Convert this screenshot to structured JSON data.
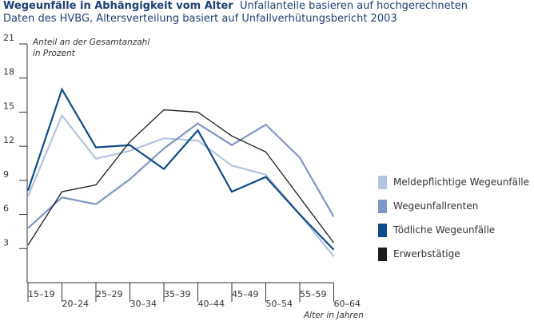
{
  "header": {
    "title_bold": "Wegeunfälle in Abhängigkeit vom Alter",
    "title_rest": "Unfallanteile basieren auf hochgerechneten",
    "subtitle_line2": "Daten des HVBG, Altersverteilung basiert auf Unfallverhütungsbericht 2003"
  },
  "chart_data": {
    "type": "line",
    "title": "Wegeunfälle in Abhängigkeit vom Alter",
    "ylabel": "Anteil an der Gesamtanzahl\nin Prozent",
    "xlabel": "Alter in Jahren",
    "ylim": [
      0,
      21
    ],
    "yticks": [
      3,
      6,
      9,
      12,
      15,
      18,
      21
    ],
    "grid": false,
    "legend_position": "right",
    "categories": [
      "15–19",
      "20–24",
      "25–29",
      "30–34",
      "35–39",
      "40–44",
      "45–49",
      "50–54",
      "55–59",
      "60–64"
    ],
    "series": [
      {
        "name": "Meldepflichtige Wegeunfälle",
        "color": "#b4c3e2",
        "values": [
          7.6,
          14.7,
          10.9,
          11.6,
          12.7,
          12.5,
          10.3,
          9.5,
          6.0,
          2.3
        ]
      },
      {
        "name": "Wegeunfallrenten",
        "color": "#8095c8",
        "values": [
          4.8,
          7.5,
          6.9,
          9.1,
          11.8,
          14.0,
          12.1,
          13.9,
          11.0,
          5.8
        ]
      },
      {
        "name": "Tödliche Wegeunfälle",
        "color": "#0d4c8a",
        "values": [
          8.1,
          17.0,
          11.9,
          12.1,
          10.0,
          13.4,
          8.0,
          9.3,
          6.0,
          2.9
        ]
      },
      {
        "name": "Erwerbstätige",
        "color": "#1c1c1c",
        "values": [
          3.3,
          8.0,
          8.6,
          12.4,
          15.2,
          15.0,
          12.9,
          11.5,
          7.5,
          3.5
        ]
      }
    ]
  }
}
